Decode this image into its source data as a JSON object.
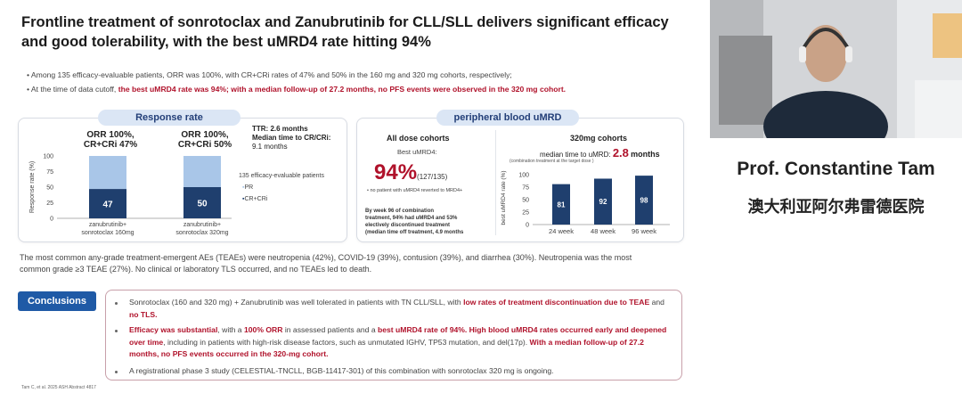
{
  "slide": {
    "title_line1": "Frontline treatment of sonrotoclax and Zanubrutinib for CLL/SLL delivers significant efficacy",
    "title_line2": "and good tolerability, with the best uMRD4 rate hitting 94%",
    "bullet1": "Among 135 efficacy-evaluable patients, ORR was 100%, with CR+CRi rates of 47% and 50% in the 160 mg and 320 mg cohorts, respectively;",
    "bullet2_prefix": "At the time of data cutoff, ",
    "bullet2_highlight": "the best uMRD4 rate was 94%; with a median follow-up of 27.2 months, no PFS events were observed in the 320 mg cohort."
  },
  "response_panel": {
    "heading": "Response rate",
    "orr1_line1": "ORR 100%,",
    "orr1_line2": "CR+CRi 47%",
    "orr2_line1": "ORR 100%,",
    "orr2_line2": "CR+CRi 50%",
    "ttr_line1": "TTR: 2.6 months",
    "ttr_line2": "Median time to CR/CRi:",
    "ttr_line3": "9.1 months",
    "legend_title": "135 efficacy-evaluable patients",
    "legend_pr": "PR",
    "legend_cr": "CR+CRi",
    "ylabel": "Response rate (%)",
    "yticks": [
      "100",
      "75",
      "50",
      "25",
      "0"
    ],
    "cat1_line1": "zanubrutinib+",
    "cat1_line2": "sonrotoclax 160mg",
    "cat2_line1": "zanubrutinib+",
    "cat2_line2": "sonrotoclax 320mg",
    "bar1_cr": "47",
    "bar2_cr": "50"
  },
  "umrd_panel": {
    "heading": "peripheral blood uMRD",
    "all_title": "All dose cohorts",
    "best_label": "Best uMRD4:",
    "big_pct": "94%",
    "big_frac": "(127/135)",
    "no_revert": "no patient with uMRD4 reverted to MRD4+",
    "week96_l1": "By week 96 of combination",
    "week96_l2": "treatment, 94% had uMRD4 and 53%",
    "week96_l3": "electively discontinued treatment",
    "week96_l4": "(median time off treatment, 4.9 months",
    "cohort_title": "320mg cohorts",
    "median_label": "median time to uMRD:",
    "median_value": "2.8",
    "median_unit": "months",
    "combo_note": "(combination treatment at the target dose )",
    "ylabel": "best uMRD4 rate (%)",
    "yticks": [
      "100",
      "75",
      "50",
      "25",
      "0"
    ]
  },
  "chart_data": [
    {
      "type": "bar",
      "title": "Response rate",
      "categories": [
        "zanubrutinib+ sonrotoclax 160mg",
        "zanubrutinib+ sonrotoclax 320mg"
      ],
      "series": [
        {
          "name": "CR+CRi",
          "values": [
            47,
            50
          ]
        },
        {
          "name": "PR",
          "values": [
            53,
            50
          ]
        }
      ],
      "ylabel": "Response rate (%)",
      "ylim": [
        0,
        100
      ],
      "stacked": true,
      "colors": {
        "CR+CRi": "#1f3f6e",
        "PR": "#a9c6e8"
      }
    },
    {
      "type": "bar",
      "title": "320mg cohorts",
      "categories": [
        "24 week",
        "48 week",
        "96 week"
      ],
      "values": [
        81,
        92,
        98
      ],
      "ylabel": "best uMRD4 rate (%)",
      "ylim": [
        0,
        100
      ],
      "color": "#1f3f6e"
    }
  ],
  "notes": {
    "tea_line": "The most common any-grade treatment-emergent AEs (TEAEs) were neutropenia (42%), COVID-19 (39%), contusion (39%), and diarrhea (30%). Neutropenia was the most common grade ≥3 TEAE (27%). No clinical or laboratory TLS occurred, and no TEAEs led to death."
  },
  "conclusions": {
    "label": "Conclusions",
    "c1_plain": "Sonrotoclax (160 and 320 mg) + Zanubrutinib was well tolerated in patients with TN CLL/SLL, with ",
    "c1_red1": "low rates of treatment discontinuation due to TEAE",
    "c1_mid": " and ",
    "c1_red2": "no TLS.",
    "c2_red1": "Efficacy was substantial",
    "c2_p1": ", with a ",
    "c2_red2": "100% ORR",
    "c2_p2": " in assessed patients and a ",
    "c2_red3": "best uMRD4 rate of 94%. High blood uMRD4 rates occurred early and deepened over time",
    "c2_p3": ", including in patients with high-risk disease factors, such as unmutated IGHV, TP53 mutation, and del(17p). ",
    "c2_red4": "With a median follow-up of 27.2 months, no PFS events occurred in the 320-mg cohort.",
    "c3": "A registrational phase 3 study (CELESTIAL-TNCLL, BGB-11417-301) of this combination with sonrotoclax 320 mg is ongoing."
  },
  "footer": "Tam C, et al. 2025 ASH Abstract 4817",
  "speaker": {
    "name": "Prof. Constantine Tam",
    "institution": "澳大利亚阿尔弗雷德医院"
  }
}
